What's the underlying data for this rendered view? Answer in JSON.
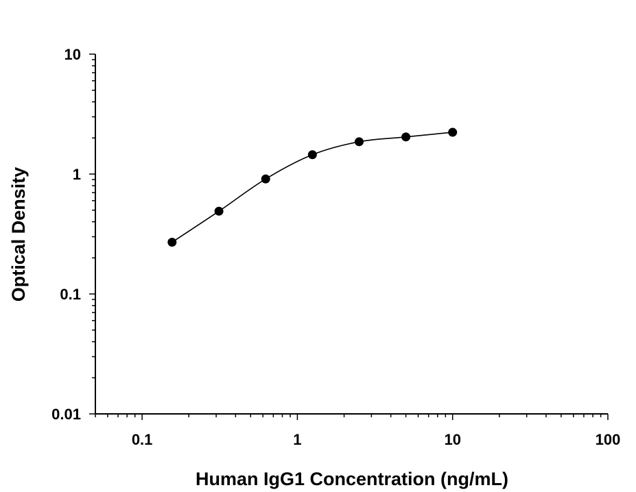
{
  "chart_data": {
    "type": "scatter",
    "title": "",
    "xlabel": "Human IgG1 Concentration (ng/mL)",
    "ylabel": "Optical Density",
    "x_scale": "log",
    "y_scale": "log",
    "xlim": [
      0.05,
      100
    ],
    "ylim": [
      0.01,
      10
    ],
    "x_ticks": [
      "0.1",
      "1",
      "10",
      "100"
    ],
    "y_ticks": [
      "0.01",
      "0.1",
      "1",
      "10"
    ],
    "grid": false,
    "fit_line": true,
    "colors": {
      "marker": "#000000",
      "line": "#000000"
    },
    "series": [
      {
        "x": [
          0.156,
          0.3125,
          0.625,
          1.25,
          2.5,
          5,
          10
        ],
        "y": [
          0.27,
          0.49,
          0.91,
          1.45,
          1.86,
          2.04,
          2.23
        ]
      }
    ]
  }
}
